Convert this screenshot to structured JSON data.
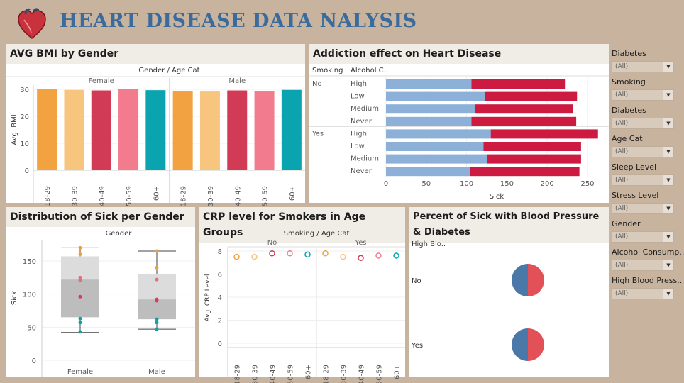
{
  "title": "HEART DISEASE DATA NALYSIS",
  "bmi": {
    "panel_title": "AVG BMI by Gender",
    "header": "Gender / Age Cat",
    "ylabel": "Avg. BMI",
    "ticks": [
      "0",
      "10",
      "20",
      "30"
    ],
    "groups": [
      {
        "name": "Female",
        "bars": [
          {
            "cat": "18-29",
            "value": 30.1
          },
          {
            "cat": "30-39",
            "value": 29.8
          },
          {
            "cat": "40-49",
            "value": 29.6
          },
          {
            "cat": "50-59",
            "value": 30.2
          },
          {
            "cat": "60+",
            "value": 29.7
          }
        ]
      },
      {
        "name": "Male",
        "bars": [
          {
            "cat": "18-29",
            "value": 29.4
          },
          {
            "cat": "30-39",
            "value": 29.2
          },
          {
            "cat": "40-49",
            "value": 29.6
          },
          {
            "cat": "50-59",
            "value": 29.4
          },
          {
            "cat": "60+",
            "value": 29.8
          }
        ]
      }
    ]
  },
  "addiction": {
    "panel_title": "Addiction effect on Heart Disease",
    "col1": "Smoking",
    "col2": "Alcohol C..",
    "xlabel": "Sick",
    "ticks": [
      "0",
      "50",
      "100",
      "150",
      "200",
      "250"
    ],
    "groups": [
      {
        "name": "No",
        "rows": [
          {
            "label": "High",
            "a": 106,
            "b": 116
          },
          {
            "label": "Low",
            "a": 123,
            "b": 114
          },
          {
            "label": "Medium",
            "a": 110,
            "b": 122
          },
          {
            "label": "Never",
            "a": 106,
            "b": 130
          }
        ]
      },
      {
        "name": "Yes",
        "rows": [
          {
            "label": "High",
            "a": 130,
            "b": 133
          },
          {
            "label": "Low",
            "a": 121,
            "b": 121
          },
          {
            "label": "Medium",
            "a": 125,
            "b": 117
          },
          {
            "label": "Never",
            "a": 104,
            "b": 136
          }
        ]
      }
    ]
  },
  "dist": {
    "panel_title": "Distribution of Sick per Gender",
    "header": "Gender",
    "ylabel": "Sick",
    "ticks": [
      "0",
      "50",
      "100",
      "150"
    ],
    "boxes": [
      {
        "name": "Female",
        "min": 42,
        "q1": 65,
        "median": 122,
        "q3": 157,
        "max": 170,
        "points": [
          {
            "v": 170,
            "c": "#e8a040"
          },
          {
            "v": 160,
            "c": "#e8a040"
          },
          {
            "v": 125,
            "c": "#e07080"
          },
          {
            "v": 121,
            "c": "#e07080"
          },
          {
            "v": 96,
            "c": "#d04060"
          },
          {
            "v": 63,
            "c": "#16a0a0"
          },
          {
            "v": 57,
            "c": "#16a0a0"
          },
          {
            "v": 43,
            "c": "#16a0a0"
          }
        ]
      },
      {
        "name": "Male",
        "min": 47,
        "q1": 62,
        "median": 92,
        "q3": 130,
        "max": 165,
        "points": [
          {
            "v": 165,
            "c": "#e8a040"
          },
          {
            "v": 140,
            "c": "#e8a040"
          },
          {
            "v": 122,
            "c": "#e07080"
          },
          {
            "v": 92,
            "c": "#d04060"
          },
          {
            "v": 90,
            "c": "#d04060"
          },
          {
            "v": 62,
            "c": "#16a0a0"
          },
          {
            "v": 57,
            "c": "#16a0a0"
          },
          {
            "v": 47,
            "c": "#16a0a0"
          }
        ]
      }
    ]
  },
  "crp": {
    "panel_title": "CRP level for Smokers in Age Groups",
    "header": "Smoking / Age Cat",
    "ylabel": "Avg. CRP Level",
    "ticks": [
      "0",
      "2",
      "4",
      "6",
      "8"
    ],
    "groups": [
      {
        "name": "No",
        "points": [
          {
            "cat": "18-29",
            "value": 7.5
          },
          {
            "cat": "30-39",
            "value": 7.5
          },
          {
            "cat": "40-49",
            "value": 7.8
          },
          {
            "cat": "50-59",
            "value": 7.8
          },
          {
            "cat": "60+",
            "value": 7.7
          }
        ]
      },
      {
        "name": "Yes",
        "points": [
          {
            "cat": "18-29",
            "value": 7.8
          },
          {
            "cat": "30-39",
            "value": 7.5
          },
          {
            "cat": "40-49",
            "value": 7.4
          },
          {
            "cat": "50-59",
            "value": 7.6
          },
          {
            "cat": "60+",
            "value": 7.6
          }
        ]
      }
    ]
  },
  "bp": {
    "panel_title": "Percent of Sick with Blood Pressure & Diabetes",
    "header": "High Blo..",
    "rows": [
      {
        "label": "No",
        "share_blue": 0.5
      },
      {
        "label": "Yes",
        "share_blue": 0.5
      }
    ]
  },
  "colors": {
    "age": [
      "#f2a241",
      "#f8c57e",
      "#d13b56",
      "#f27b8e",
      "#0aa3b0"
    ],
    "blue": "#8cb0d8",
    "red": "#cc1a40",
    "pie_blue": "#4a78a8",
    "pie_red": "#e25058"
  },
  "filters": [
    {
      "label": "Diabetes",
      "value": "(All)"
    },
    {
      "label": "Smoking",
      "value": "(All)"
    },
    {
      "label": "Diabetes",
      "value": "(All)"
    },
    {
      "label": "Age Cat",
      "value": "(All)"
    },
    {
      "label": "Sleep Level",
      "value": "(All)"
    },
    {
      "label": "Stress Level",
      "value": "(All)"
    },
    {
      "label": "Gender",
      "value": "(All)"
    },
    {
      "label": "Alcohol Consump..",
      "value": "(All)"
    },
    {
      "label": "High Blood Press..",
      "value": "(All)"
    }
  ]
}
